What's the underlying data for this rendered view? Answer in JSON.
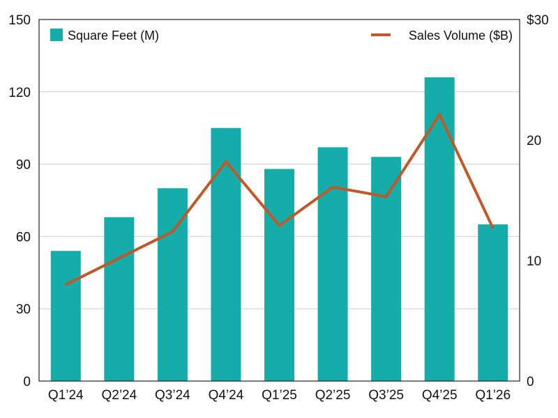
{
  "chart_data": {
    "type": "bar",
    "categories": [
      "Q1’24",
      "Q2’24",
      "Q3’24",
      "Q4’24",
      "Q1’25",
      "Q2’25",
      "Q3’25",
      "Q4’25",
      "Q1’26"
    ],
    "series": [
      {
        "name": "Square Feet (M)",
        "type": "bar",
        "axis": "left",
        "color": "#14ADAA",
        "values": [
          54,
          68,
          80,
          105,
          88,
          97,
          93,
          126,
          65
        ]
      },
      {
        "name": "Sales Volume ($B)",
        "type": "line",
        "axis": "right",
        "color": "#C0582A",
        "values": [
          8.0,
          10.2,
          12.4,
          18.2,
          12.9,
          16.1,
          15.3,
          22.1,
          12.7
        ]
      }
    ],
    "yleft": {
      "range": [
        0,
        150
      ],
      "ticks": [
        "0",
        "30",
        "60",
        "90",
        "120",
        "150"
      ],
      "tick_values": [
        0,
        30,
        60,
        90,
        120,
        150
      ]
    },
    "yright": {
      "range": [
        0,
        30
      ],
      "ticks": [
        "0",
        "10",
        "20",
        "$30"
      ],
      "tick_values": [
        0,
        10,
        20,
        30
      ]
    },
    "grid": "horizontal",
    "legend": {
      "bar_position": "top-left",
      "line_position": "top-right"
    }
  }
}
